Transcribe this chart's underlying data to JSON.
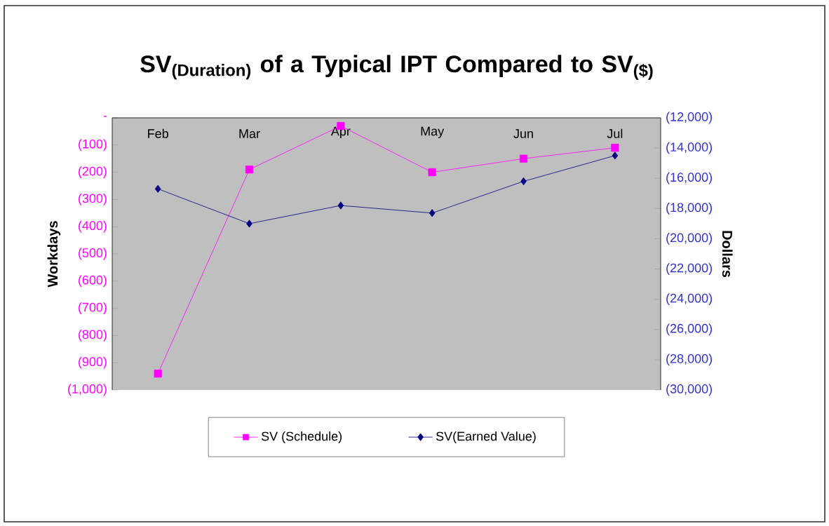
{
  "chart_data": {
    "type": "line",
    "title": "SV$_{(Duration)}$ of a Typical IPT Compared to SV$_{($)}$",
    "ylabel": "Workdays",
    "y2label": "Dollars",
    "categories": [
      "Feb",
      "Mar",
      "Apr",
      "May",
      "Jun",
      "Jul"
    ],
    "series": [
      {
        "name": "SV (Schedule)",
        "color": "#ff00ff",
        "marker": "square",
        "values": [
          -940,
          -190,
          -30,
          -200,
          -150,
          -110
        ]
      },
      {
        "name": "SV(Earned Value)",
        "color": "#000080",
        "marker": "diamond",
        "axis": "y2",
        "values": [
          -16700,
          -19000,
          -17800,
          -18300,
          -16200,
          -14500
        ]
      }
    ],
    "ylim": [
      -1000,
      0
    ],
    "yticks": [
      {
        "value": 0,
        "label": "-"
      },
      {
        "value": -100,
        "label": "(100)"
      },
      {
        "value": -200,
        "label": "(200)"
      },
      {
        "value": -300,
        "label": "(300)"
      },
      {
        "value": -400,
        "label": "(400)"
      },
      {
        "value": -500,
        "label": "(500)"
      },
      {
        "value": -600,
        "label": "(600)"
      },
      {
        "value": -700,
        "label": "(700)"
      },
      {
        "value": -800,
        "label": "(800)"
      },
      {
        "value": -900,
        "label": "(900)"
      },
      {
        "value": -1000,
        "label": "(1,000)"
      }
    ],
    "y2lim": [
      -30000,
      -12000
    ],
    "y2ticks": [
      {
        "value": -12000,
        "label": "(12,000)"
      },
      {
        "value": -14000,
        "label": "(14,000)"
      },
      {
        "value": -16000,
        "label": "(16,000)"
      },
      {
        "value": -18000,
        "label": "(18,000)"
      },
      {
        "value": -20000,
        "label": "(20,000)"
      },
      {
        "value": -22000,
        "label": "(22,000)"
      },
      {
        "value": -24000,
        "label": "(24,000)"
      },
      {
        "value": -26000,
        "label": "(26,000)"
      },
      {
        "value": -28000,
        "label": "(28,000)"
      },
      {
        "value": -30000,
        "label": "(30,000)"
      }
    ],
    "grid": false,
    "legend": "bottom",
    "line_style": "solid"
  }
}
